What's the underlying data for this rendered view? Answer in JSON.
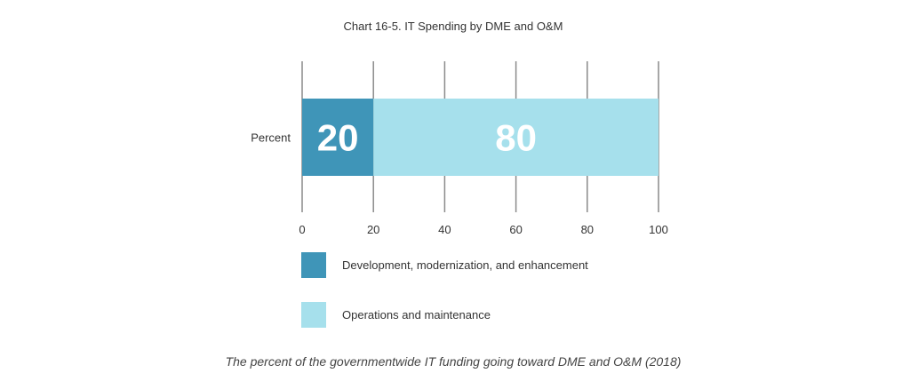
{
  "chart_data": {
    "type": "bar",
    "orientation": "horizontal",
    "stacked": true,
    "title": "Chart 16-5. IT Spending by DME and O&M",
    "categories": [
      "Percent"
    ],
    "series": [
      {
        "name": "Development, modernization, and enhancement",
        "values": [
          20
        ],
        "color": "#3f95b8"
      },
      {
        "name": "Operations and maintenance",
        "values": [
          80
        ],
        "color": "#a6e0ec"
      }
    ],
    "xlim": [
      0,
      100
    ],
    "xticks": [
      "0",
      "20",
      "40",
      "60",
      "80",
      "100"
    ],
    "grid": true,
    "legend_position": "bottom"
  },
  "caption": "The percent of the governmentwide IT funding going toward DME and O&M (2018)"
}
